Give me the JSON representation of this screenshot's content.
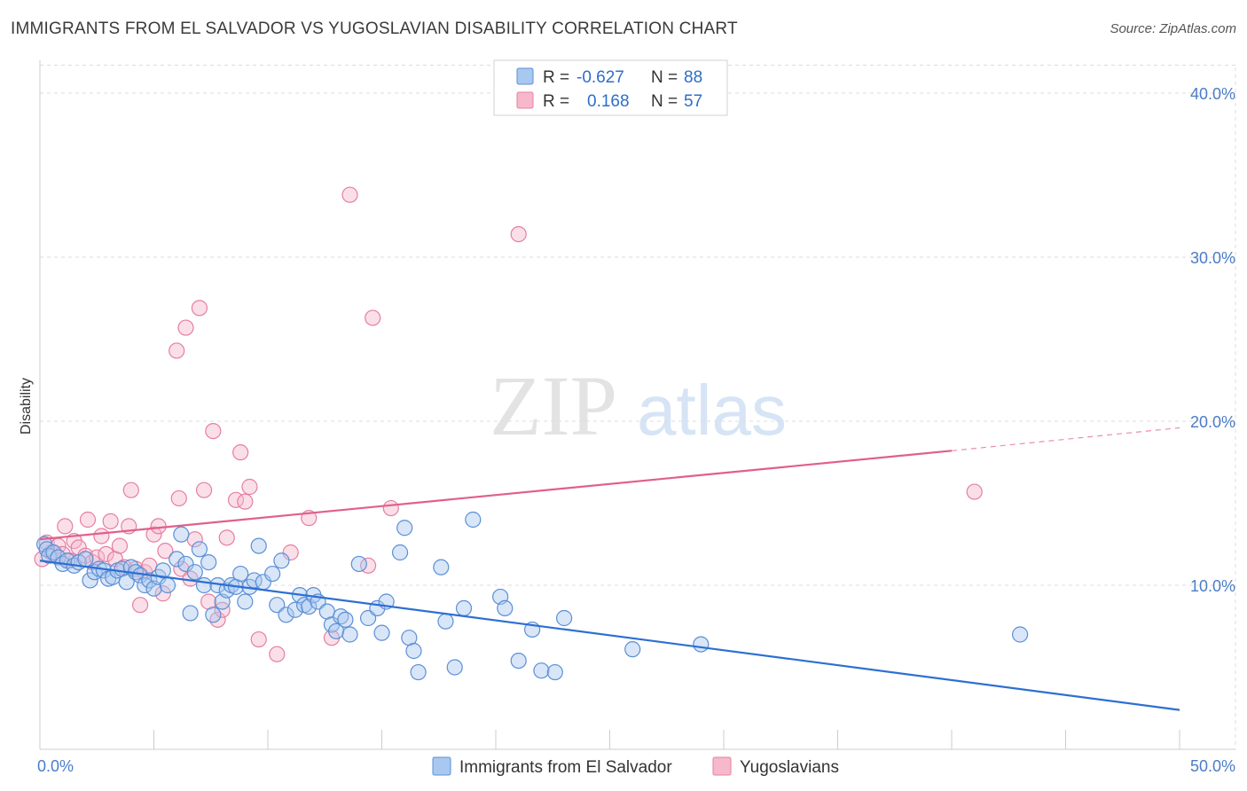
{
  "header": {
    "title": "IMMIGRANTS FROM EL SALVADOR VS YUGOSLAVIAN DISABILITY CORRELATION CHART",
    "source": "Source: ZipAtlas.com"
  },
  "watermark": {
    "zip": "ZIP",
    "atlas": "atlas"
  },
  "colors": {
    "blue_fill": "#a8c8f0",
    "blue_stroke": "#5b8fd6",
    "blue_line": "#2d6fd2",
    "pink_fill": "#f7b8cb",
    "pink_stroke": "#e57fa1",
    "pink_line": "#e0608a",
    "axis_label": "#4a7cc9"
  },
  "stats_legend": {
    "rows": [
      {
        "r_label": "R =",
        "r_value": "-0.627",
        "n_label": "N =",
        "n_value": "88"
      },
      {
        "r_label": "R =",
        "r_value": "0.168",
        "n_label": "N =",
        "n_value": "57"
      }
    ]
  },
  "bottom_legend": [
    {
      "label": "Immigrants from El Salvador"
    },
    {
      "label": "Yugoslavians"
    }
  ],
  "chart_data": {
    "type": "scatter",
    "title": "IMMIGRANTS FROM EL SALVADOR VS YUGOSLAVIAN DISABILITY CORRELATION CHART",
    "xlabel": "",
    "ylabel": "Disability",
    "xlim": [
      0,
      50
    ],
    "ylim": [
      0,
      42
    ],
    "x_tick_labels": [
      "0.0%",
      "50.0%"
    ],
    "y_ticks": [
      10,
      20,
      30,
      40
    ],
    "y_tick_labels": [
      "10.0%",
      "20.0%",
      "30.0%",
      "40.0%"
    ],
    "grid": true,
    "legend_position": "top-center",
    "series": [
      {
        "name": "Immigrants from El Salvador",
        "r": -0.627,
        "n": 88,
        "trend": {
          "x0": 0,
          "y0": 11.5,
          "x1": 50,
          "y1": 2.4
        },
        "points": [
          [
            0.2,
            12.5
          ],
          [
            0.3,
            12.2
          ],
          [
            0.4,
            11.8
          ],
          [
            0.6,
            12.0
          ],
          [
            0.8,
            11.7
          ],
          [
            1.0,
            11.3
          ],
          [
            1.2,
            11.5
          ],
          [
            1.5,
            11.2
          ],
          [
            1.7,
            11.4
          ],
          [
            2.0,
            11.6
          ],
          [
            2.2,
            10.3
          ],
          [
            2.4,
            10.8
          ],
          [
            2.6,
            11.0
          ],
          [
            2.8,
            10.9
          ],
          [
            3.0,
            10.4
          ],
          [
            3.2,
            10.5
          ],
          [
            3.4,
            10.9
          ],
          [
            3.6,
            11.0
          ],
          [
            3.8,
            10.2
          ],
          [
            4.0,
            11.1
          ],
          [
            4.2,
            10.8
          ],
          [
            4.4,
            10.6
          ],
          [
            4.6,
            10.0
          ],
          [
            4.8,
            10.3
          ],
          [
            5.0,
            9.8
          ],
          [
            5.2,
            10.5
          ],
          [
            5.4,
            10.9
          ],
          [
            5.6,
            10.0
          ],
          [
            6.0,
            11.6
          ],
          [
            6.2,
            13.1
          ],
          [
            6.4,
            11.3
          ],
          [
            6.6,
            8.3
          ],
          [
            6.8,
            10.8
          ],
          [
            7.0,
            12.2
          ],
          [
            7.2,
            10.0
          ],
          [
            7.4,
            11.4
          ],
          [
            7.6,
            8.2
          ],
          [
            7.8,
            10.0
          ],
          [
            8.0,
            9.0
          ],
          [
            8.2,
            9.7
          ],
          [
            8.4,
            10.0
          ],
          [
            8.6,
            9.9
          ],
          [
            8.8,
            10.7
          ],
          [
            9.0,
            9.0
          ],
          [
            9.2,
            9.9
          ],
          [
            9.4,
            10.3
          ],
          [
            9.6,
            12.4
          ],
          [
            9.8,
            10.2
          ],
          [
            10.2,
            10.7
          ],
          [
            10.4,
            8.8
          ],
          [
            10.6,
            11.5
          ],
          [
            10.8,
            8.2
          ],
          [
            11.2,
            8.5
          ],
          [
            11.4,
            9.4
          ],
          [
            11.6,
            8.8
          ],
          [
            11.8,
            8.7
          ],
          [
            12.0,
            9.4
          ],
          [
            12.2,
            9.0
          ],
          [
            12.6,
            8.4
          ],
          [
            12.8,
            7.6
          ],
          [
            13.0,
            7.2
          ],
          [
            13.2,
            8.1
          ],
          [
            13.4,
            7.9
          ],
          [
            13.6,
            7.0
          ],
          [
            14.0,
            11.3
          ],
          [
            14.4,
            8.0
          ],
          [
            14.8,
            8.6
          ],
          [
            15.0,
            7.1
          ],
          [
            15.2,
            9.0
          ],
          [
            15.8,
            12.0
          ],
          [
            16.0,
            13.5
          ],
          [
            16.2,
            6.8
          ],
          [
            16.4,
            6.0
          ],
          [
            16.6,
            4.7
          ],
          [
            17.6,
            11.1
          ],
          [
            17.8,
            7.8
          ],
          [
            18.2,
            5.0
          ],
          [
            18.6,
            8.6
          ],
          [
            19.0,
            14.0
          ],
          [
            20.2,
            9.3
          ],
          [
            20.4,
            8.6
          ],
          [
            21.0,
            5.4
          ],
          [
            21.6,
            7.3
          ],
          [
            22.0,
            4.8
          ],
          [
            22.6,
            4.7
          ],
          [
            23.0,
            8.0
          ],
          [
            26.0,
            6.1
          ],
          [
            29.0,
            6.4
          ],
          [
            43.0,
            7.0
          ]
        ]
      },
      {
        "name": "Yugoslavians",
        "r": 0.168,
        "n": 57,
        "trend": {
          "x0": 0,
          "y0": 12.8,
          "x1": 40,
          "y1": 18.2,
          "dashed_to_x": 50,
          "dashed_to_y": 19.6
        },
        "points": [
          [
            0.1,
            11.6
          ],
          [
            0.3,
            12.6
          ],
          [
            0.5,
            12.0
          ],
          [
            0.8,
            12.4
          ],
          [
            1.0,
            11.9
          ],
          [
            1.1,
            13.6
          ],
          [
            1.3,
            11.5
          ],
          [
            1.5,
            12.7
          ],
          [
            1.7,
            12.3
          ],
          [
            2.0,
            11.8
          ],
          [
            2.1,
            14.0
          ],
          [
            2.3,
            11.4
          ],
          [
            2.5,
            11.7
          ],
          [
            2.7,
            13.0
          ],
          [
            2.9,
            11.9
          ],
          [
            3.1,
            13.9
          ],
          [
            3.3,
            11.6
          ],
          [
            3.5,
            12.4
          ],
          [
            3.7,
            11.1
          ],
          [
            3.9,
            13.6
          ],
          [
            4.0,
            15.8
          ],
          [
            4.2,
            11.0
          ],
          [
            4.4,
            8.8
          ],
          [
            4.6,
            10.8
          ],
          [
            4.8,
            11.2
          ],
          [
            5.0,
            13.1
          ],
          [
            5.2,
            13.6
          ],
          [
            5.4,
            9.5
          ],
          [
            5.5,
            12.1
          ],
          [
            6.0,
            24.3
          ],
          [
            6.1,
            15.3
          ],
          [
            6.2,
            11.0
          ],
          [
            6.4,
            25.7
          ],
          [
            6.6,
            10.4
          ],
          [
            6.8,
            12.8
          ],
          [
            7.0,
            26.9
          ],
          [
            7.2,
            15.8
          ],
          [
            7.4,
            9.0
          ],
          [
            7.6,
            19.4
          ],
          [
            7.8,
            7.9
          ],
          [
            8.0,
            8.5
          ],
          [
            8.2,
            12.9
          ],
          [
            8.6,
            15.2
          ],
          [
            8.8,
            18.1
          ],
          [
            9.0,
            15.1
          ],
          [
            9.2,
            16.0
          ],
          [
            9.6,
            6.7
          ],
          [
            10.4,
            5.8
          ],
          [
            11.0,
            12.0
          ],
          [
            11.8,
            14.1
          ],
          [
            12.8,
            6.8
          ],
          [
            13.6,
            33.8
          ],
          [
            14.4,
            11.2
          ],
          [
            14.6,
            26.3
          ],
          [
            15.4,
            14.7
          ],
          [
            21.0,
            31.4
          ],
          [
            41.0,
            15.7
          ]
        ]
      }
    ]
  }
}
